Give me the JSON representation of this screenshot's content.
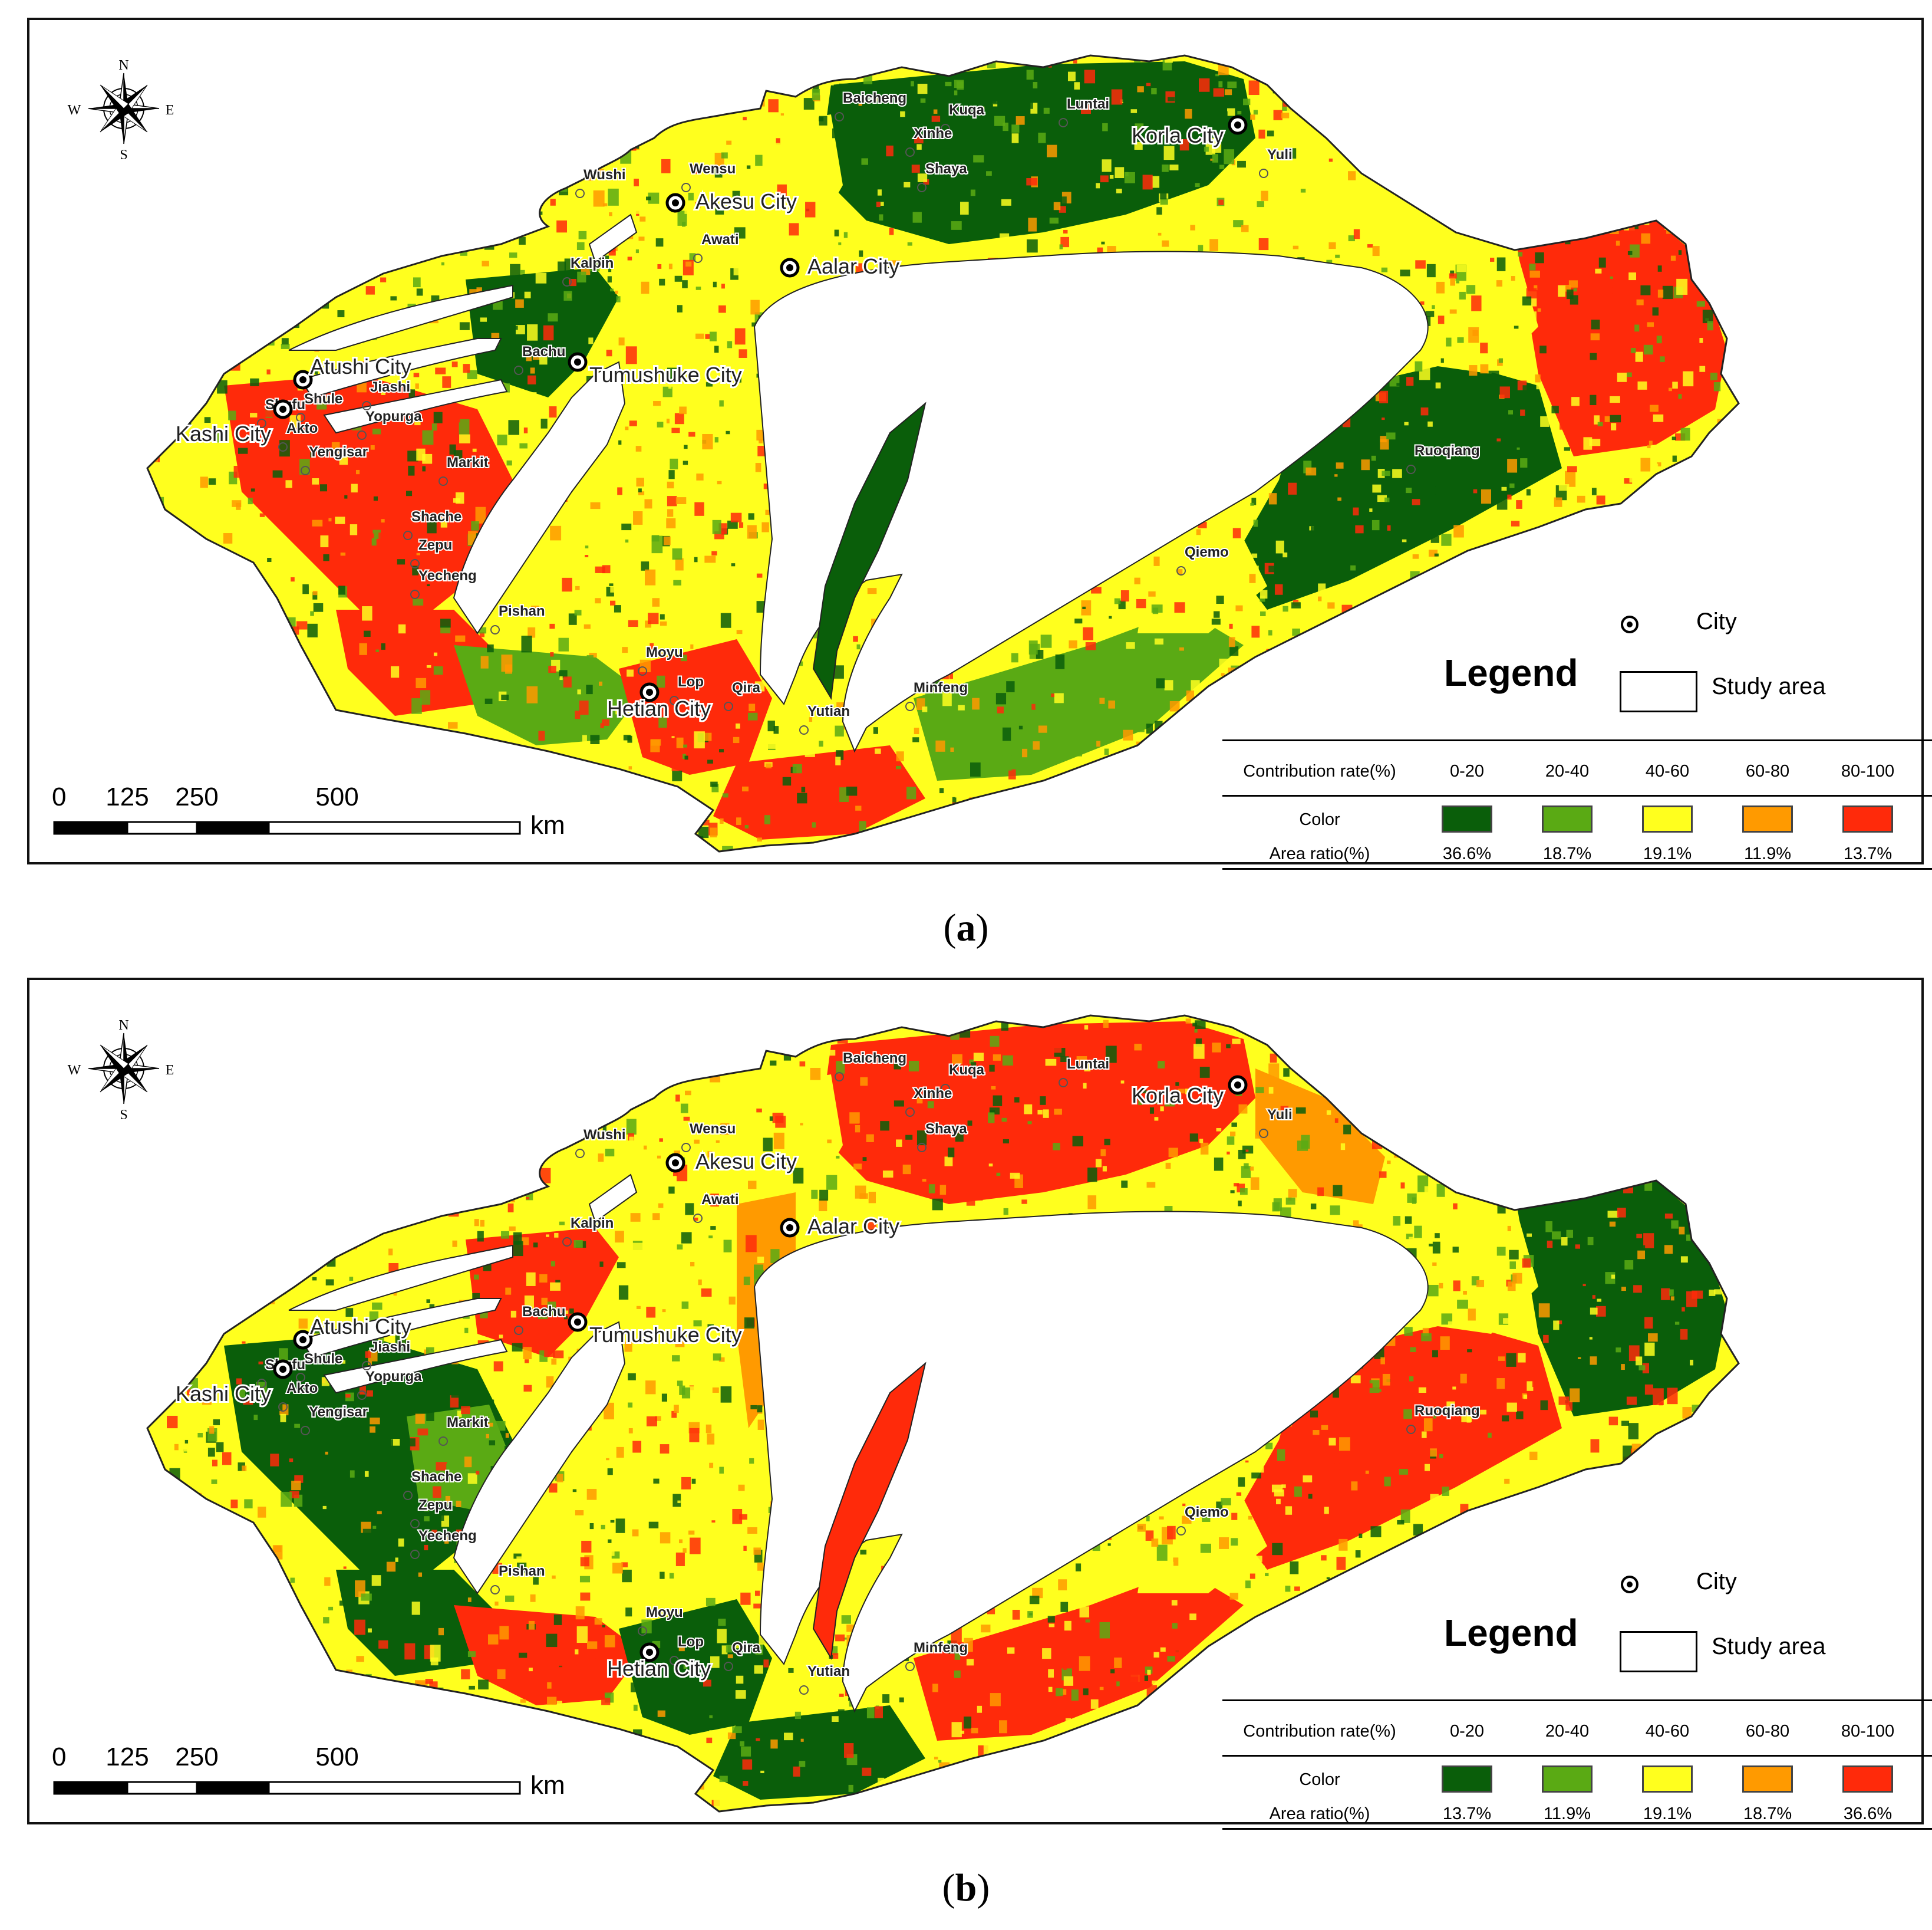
{
  "colors": {
    "c0_20": "#0a5e0a",
    "c20_40": "#5aaa14",
    "c40_60": "#ffff1e",
    "c60_80": "#ff9a00",
    "c80_100": "#ff2a0a"
  },
  "compass": {
    "n": "N",
    "s": "S",
    "e": "E",
    "w": "W",
    "icon": "compass-rose-icon"
  },
  "scale_bar": {
    "ticks": [
      "0",
      "125",
      "250",
      "500"
    ],
    "unit": "km"
  },
  "legend": {
    "title": "Legend",
    "city_label": "City",
    "study_area_label": "Study area",
    "contribution_label": "Contribution rate(%)",
    "color_label": "Color",
    "area_ratio_label": "Area ratio(%)",
    "classes": [
      "0-20",
      "20-40",
      "40-60",
      "60-80",
      "80-100"
    ]
  },
  "cities": [
    "Akesu City",
    "Aalar City",
    "Korla City",
    "Atushi City",
    "Tumushuke City",
    "Kashi City",
    "Hetian City"
  ],
  "counties": [
    "Baicheng",
    "Kuqa",
    "Luntai",
    "Xinhe",
    "Shaya",
    "Wensu",
    "Wushi",
    "Awati",
    "Kalpin",
    "Bachu",
    "Jiashi",
    "Shule",
    "Shufu",
    "Akto",
    "Yopurga",
    "Yengisar",
    "Markit",
    "Shache",
    "Zepu",
    "Yecheng",
    "Pishan",
    "Moyu",
    "Lop",
    "Qira",
    "Yutian",
    "Minfeng",
    "Qiemo",
    "Ruoqiang",
    "Yuli"
  ],
  "panels": [
    {
      "caption_letter": "a",
      "area_ratios": [
        "36.6%",
        "18.7%",
        "19.1%",
        "11.9%",
        "13.7%"
      ]
    },
    {
      "caption_letter": "b",
      "area_ratios": [
        "13.7%",
        "11.9%",
        "19.1%",
        "18.7%",
        "36.6%"
      ]
    }
  ]
}
